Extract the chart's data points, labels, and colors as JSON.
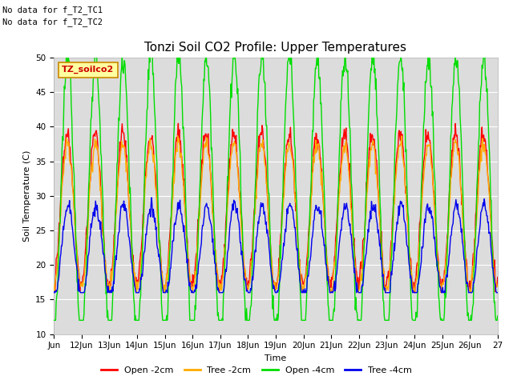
{
  "title": "Tonzi Soil CO2 Profile: Upper Temperatures",
  "ylabel": "Soil Temperature (C)",
  "xlabel": "Time",
  "annotations": [
    "No data for f_T2_TC1",
    "No data for f_T2_TC2"
  ],
  "legend_label": "TZ_soilco2",
  "series_labels": [
    "Open -2cm",
    "Tree -2cm",
    "Open -4cm",
    "Tree -4cm"
  ],
  "series_colors": [
    "#ff0000",
    "#ffaa00",
    "#00dd00",
    "#0000ee"
  ],
  "ylim": [
    10,
    50
  ],
  "background_color": "#dcdcdc",
  "day_labels": [
    "Jun",
    "12Jun",
    "13Jun",
    "14Jun",
    "15Jun",
    "16Jun",
    "17Jun",
    "18Jun",
    "19Jun",
    "20Jun",
    "21Jun",
    "22Jun",
    "23Jun",
    "24Jun",
    "25Jun",
    "26Jun",
    "27"
  ],
  "title_fontsize": 11,
  "axis_fontsize": 8,
  "tick_fontsize": 7.5
}
